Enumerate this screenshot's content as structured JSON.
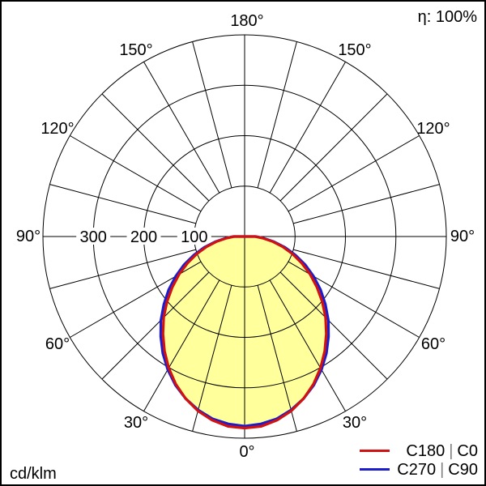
{
  "window": {
    "background": "#ffffff",
    "border_color": "#000000"
  },
  "header": {
    "efficiency": "η: 100%"
  },
  "footer": {
    "unit": "cd/klm"
  },
  "legend": {
    "entries": [
      {
        "planes": "C180 | C0",
        "plane_a": "C180",
        "separator": "|",
        "plane_b": "C0",
        "color": "#d01212"
      },
      {
        "planes": "C270 | C90",
        "plane_a": "C270",
        "separator": "|",
        "plane_b": "C90",
        "color": "#1c1ccd"
      }
    ]
  },
  "chart_data": {
    "type": "line",
    "polar": true,
    "description": "Polar luminous intensity distribution curve, 0° at nadir (bottom), 180° at top, intensity in cd/klm",
    "unit": "cd/klm",
    "efficiency": "η: 100%",
    "angle_tick_step_deg": 15,
    "angle_label_step_deg": 30,
    "angle_labels": [
      "0°",
      "30°",
      "60°",
      "90°",
      "120°",
      "150°",
      "180°"
    ],
    "radial_ticks": [
      100,
      200,
      300
    ],
    "radial_tick_labels": [
      "100",
      "200",
      "300"
    ],
    "radial_max": 400,
    "grid_color": "#000000",
    "fill_color": "#ffff9b",
    "values_above_90_deg": 0,
    "symmetric_about_vertical": true,
    "angles_deg": [
      0,
      5,
      10,
      15,
      20,
      25,
      30,
      35,
      40,
      45,
      50,
      55,
      60,
      65,
      70,
      75,
      80,
      85,
      90
    ],
    "series": [
      {
        "name": "C180 | C0",
        "color": "#d01212",
        "values": [
          380,
          378,
          370,
          358,
          342,
          323,
          301,
          277,
          252,
          227,
          201,
          175,
          150,
          125,
          101,
          78,
          56,
          36,
          21
        ]
      },
      {
        "name": "C270 | C90",
        "color": "#1c1ccd",
        "values": [
          376,
          373,
          367,
          356,
          342,
          325,
          305,
          283,
          259,
          235,
          209,
          184,
          158,
          133,
          107,
          83,
          59,
          38,
          22
        ]
      }
    ]
  }
}
